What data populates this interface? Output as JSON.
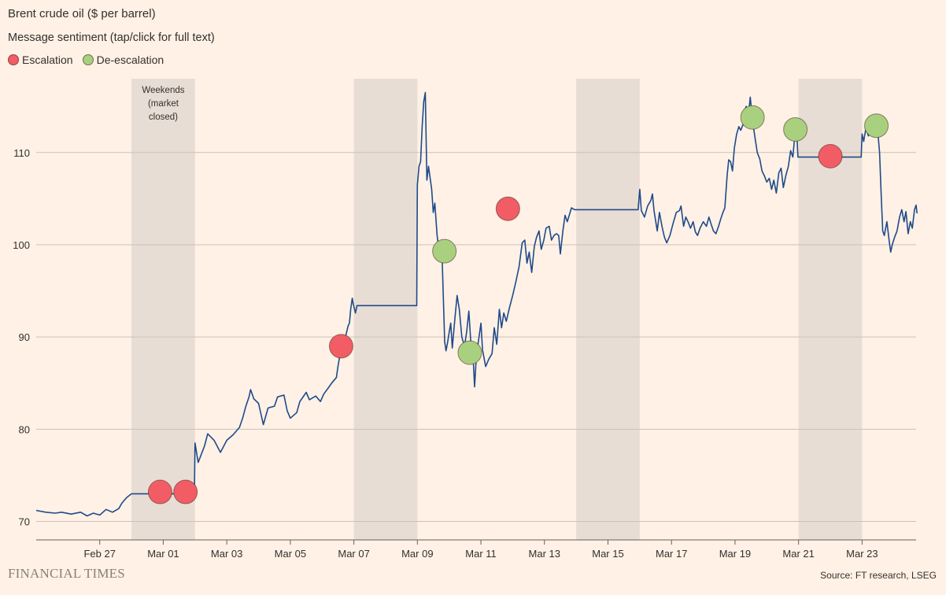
{
  "colors": {
    "background": "#fff1e5",
    "line": "#1f4a8a",
    "gridline": "#ccc1b7",
    "weekend_band": "#e8ddd4",
    "escalation": "#f25d65",
    "de_escalation": "#a9d07e"
  },
  "header": {
    "title": "Brent crude oil ($ per barrel)",
    "subtitle": "Message sentiment (tap/click for full text)"
  },
  "legend": {
    "items": [
      {
        "label": "Escalation",
        "color": "#f25d65"
      },
      {
        "label": "De-escalation",
        "color": "#a9d07e"
      }
    ]
  },
  "footer": {
    "logo": "FINANCIAL TIMES",
    "source": "Source: FT research, LSEG"
  },
  "chart_data": {
    "type": "line",
    "x_unit": "days",
    "xlim": [
      -1.0,
      26.7
    ],
    "ylim": [
      68.0,
      118.0
    ],
    "y_ticks": [
      70,
      80,
      90,
      100,
      110
    ],
    "x_ticks": [
      {
        "x": 1,
        "label": "Feb 27"
      },
      {
        "x": 3,
        "label": "Mar 01"
      },
      {
        "x": 5,
        "label": "Mar 03"
      },
      {
        "x": 7,
        "label": "Mar 05"
      },
      {
        "x": 9,
        "label": "Mar 07"
      },
      {
        "x": 11,
        "label": "Mar 09"
      },
      {
        "x": 13,
        "label": "Mar 11"
      },
      {
        "x": 15,
        "label": "Mar 13"
      },
      {
        "x": 17,
        "label": "Mar 15"
      },
      {
        "x": 19,
        "label": "Mar 17"
      },
      {
        "x": 21,
        "label": "Mar 19"
      },
      {
        "x": 23,
        "label": "Mar 21"
      },
      {
        "x": 25,
        "label": "Mar 23"
      }
    ],
    "weekend_bands": [
      [
        2.0,
        4.0
      ],
      [
        9.0,
        11.0
      ],
      [
        16.0,
        18.0
      ],
      [
        23.0,
        25.0
      ]
    ],
    "band_label": "Weekends\n(market\nclosed)",
    "grid": true,
    "series": [
      {
        "points": [
          [
            -1.0,
            71.2
          ],
          [
            -0.7,
            71.0
          ],
          [
            -0.4,
            70.9
          ],
          [
            -0.2,
            71.0
          ],
          [
            0.1,
            70.8
          ],
          [
            0.4,
            71.0
          ],
          [
            0.6,
            70.6
          ],
          [
            0.8,
            70.9
          ],
          [
            1.0,
            70.7
          ],
          [
            1.2,
            71.3
          ],
          [
            1.4,
            71.0
          ],
          [
            1.6,
            71.4
          ],
          [
            1.7,
            72.0
          ],
          [
            1.85,
            72.6
          ],
          [
            2.0,
            73.0
          ],
          [
            2.15,
            73.0
          ],
          [
            3.5,
            73.0
          ],
          [
            3.98,
            73.0
          ],
          [
            4.0,
            78.5
          ],
          [
            4.1,
            76.4
          ],
          [
            4.3,
            78.2
          ],
          [
            4.4,
            79.5
          ],
          [
            4.6,
            78.8
          ],
          [
            4.8,
            77.5
          ],
          [
            5.0,
            78.8
          ],
          [
            5.2,
            79.4
          ],
          [
            5.4,
            80.2
          ],
          [
            5.5,
            81.2
          ],
          [
            5.6,
            82.5
          ],
          [
            5.7,
            83.5
          ],
          [
            5.75,
            84.3
          ],
          [
            5.85,
            83.3
          ],
          [
            6.0,
            82.8
          ],
          [
            6.15,
            80.5
          ],
          [
            6.3,
            82.3
          ],
          [
            6.5,
            82.5
          ],
          [
            6.6,
            83.5
          ],
          [
            6.8,
            83.7
          ],
          [
            6.9,
            82.0
          ],
          [
            7.0,
            81.2
          ],
          [
            7.2,
            81.8
          ],
          [
            7.3,
            83.0
          ],
          [
            7.5,
            84.0
          ],
          [
            7.6,
            83.2
          ],
          [
            7.8,
            83.6
          ],
          [
            7.95,
            83.0
          ],
          [
            8.05,
            83.8
          ],
          [
            8.2,
            84.5
          ],
          [
            8.3,
            85.0
          ],
          [
            8.45,
            85.6
          ],
          [
            8.5,
            86.8
          ],
          [
            8.55,
            87.8
          ],
          [
            8.62,
            88.8
          ],
          [
            8.68,
            89.3
          ],
          [
            8.75,
            90.2
          ],
          [
            8.82,
            91.2
          ],
          [
            8.86,
            91.5
          ],
          [
            8.9,
            93.0
          ],
          [
            8.95,
            94.2
          ],
          [
            8.98,
            93.6
          ],
          [
            9.05,
            92.6
          ],
          [
            9.1,
            93.4
          ],
          [
            10.98,
            93.4
          ],
          [
            11.0,
            106.5
          ],
          [
            11.05,
            108.5
          ],
          [
            11.1,
            109.0
          ],
          [
            11.15,
            112.8
          ],
          [
            11.2,
            115.5
          ],
          [
            11.25,
            116.5
          ],
          [
            11.3,
            107.0
          ],
          [
            11.35,
            108.5
          ],
          [
            11.45,
            106.0
          ],
          [
            11.5,
            103.5
          ],
          [
            11.55,
            104.5
          ],
          [
            11.62,
            101.0
          ],
          [
            11.7,
            99.0
          ],
          [
            11.78,
            98.5
          ],
          [
            11.82,
            94.0
          ],
          [
            11.86,
            89.5
          ],
          [
            11.9,
            88.5
          ],
          [
            11.95,
            89.4
          ],
          [
            12.0,
            90.5
          ],
          [
            12.05,
            91.5
          ],
          [
            12.1,
            88.8
          ],
          [
            12.18,
            92.0
          ],
          [
            12.25,
            94.5
          ],
          [
            12.32,
            93.0
          ],
          [
            12.4,
            90.0
          ],
          [
            12.48,
            89.0
          ],
          [
            12.55,
            90.5
          ],
          [
            12.62,
            92.8
          ],
          [
            12.7,
            88.5
          ],
          [
            12.75,
            88.1
          ],
          [
            12.8,
            84.6
          ],
          [
            12.85,
            87.5
          ],
          [
            12.9,
            89.0
          ],
          [
            13.0,
            91.5
          ],
          [
            13.05,
            88.6
          ],
          [
            13.15,
            86.8
          ],
          [
            13.25,
            87.6
          ],
          [
            13.35,
            88.2
          ],
          [
            13.42,
            91.0
          ],
          [
            13.5,
            89.2
          ],
          [
            13.58,
            93.0
          ],
          [
            13.65,
            91.0
          ],
          [
            13.72,
            92.6
          ],
          [
            13.8,
            91.7
          ],
          [
            13.9,
            93.2
          ],
          [
            14.0,
            94.5
          ],
          [
            14.1,
            96.0
          ],
          [
            14.2,
            97.6
          ],
          [
            14.3,
            100.2
          ],
          [
            14.38,
            100.5
          ],
          [
            14.45,
            98.0
          ],
          [
            14.52,
            99.2
          ],
          [
            14.6,
            97.0
          ],
          [
            14.68,
            99.8
          ],
          [
            14.75,
            100.8
          ],
          [
            14.83,
            101.5
          ],
          [
            14.9,
            99.5
          ],
          [
            14.98,
            100.5
          ],
          [
            15.05,
            101.8
          ],
          [
            15.15,
            102.0
          ],
          [
            15.22,
            100.5
          ],
          [
            15.3,
            101.0
          ],
          [
            15.38,
            101.2
          ],
          [
            15.45,
            101.0
          ],
          [
            15.5,
            99.0
          ],
          [
            15.58,
            101.5
          ],
          [
            15.65,
            103.2
          ],
          [
            15.72,
            102.5
          ],
          [
            15.78,
            103.2
          ],
          [
            15.85,
            104.0
          ],
          [
            15.95,
            103.8
          ],
          [
            16.02,
            103.8
          ],
          [
            17.95,
            103.8
          ],
          [
            18.0,
            106.0
          ],
          [
            18.05,
            103.7
          ],
          [
            18.15,
            103.0
          ],
          [
            18.25,
            104.2
          ],
          [
            18.35,
            104.8
          ],
          [
            18.4,
            105.5
          ],
          [
            18.45,
            103.7
          ],
          [
            18.55,
            101.5
          ],
          [
            18.62,
            103.5
          ],
          [
            18.7,
            102.0
          ],
          [
            18.78,
            100.8
          ],
          [
            18.85,
            100.2
          ],
          [
            18.95,
            101.0
          ],
          [
            19.05,
            102.3
          ],
          [
            19.15,
            103.5
          ],
          [
            19.25,
            103.7
          ],
          [
            19.3,
            104.2
          ],
          [
            19.38,
            102.0
          ],
          [
            19.45,
            103.0
          ],
          [
            19.52,
            102.5
          ],
          [
            19.6,
            101.8
          ],
          [
            19.68,
            102.5
          ],
          [
            19.75,
            101.4
          ],
          [
            19.82,
            101.0
          ],
          [
            19.9,
            101.8
          ],
          [
            20.0,
            102.5
          ],
          [
            20.1,
            102.0
          ],
          [
            20.18,
            103.0
          ],
          [
            20.25,
            102.2
          ],
          [
            20.32,
            101.5
          ],
          [
            20.4,
            101.2
          ],
          [
            20.48,
            102.0
          ],
          [
            20.55,
            102.8
          ],
          [
            20.62,
            103.5
          ],
          [
            20.68,
            104.0
          ],
          [
            20.75,
            107.5
          ],
          [
            20.8,
            109.2
          ],
          [
            20.86,
            109.0
          ],
          [
            20.92,
            108.0
          ],
          [
            20.98,
            110.5
          ],
          [
            21.05,
            112.0
          ],
          [
            21.12,
            112.8
          ],
          [
            21.18,
            112.4
          ],
          [
            21.25,
            113.0
          ],
          [
            21.3,
            114.5
          ],
          [
            21.35,
            115.0
          ],
          [
            21.42,
            114.0
          ],
          [
            21.48,
            116.0
          ],
          [
            21.55,
            113.5
          ],
          [
            21.62,
            111.8
          ],
          [
            21.7,
            110.0
          ],
          [
            21.78,
            109.3
          ],
          [
            21.85,
            108.0
          ],
          [
            21.92,
            107.5
          ],
          [
            22.0,
            106.8
          ],
          [
            22.08,
            107.2
          ],
          [
            22.15,
            106.0
          ],
          [
            22.22,
            107.0
          ],
          [
            22.3,
            105.6
          ],
          [
            22.38,
            107.8
          ],
          [
            22.45,
            108.3
          ],
          [
            22.52,
            106.2
          ],
          [
            22.6,
            107.5
          ],
          [
            22.68,
            108.5
          ],
          [
            22.75,
            110.2
          ],
          [
            22.82,
            109.5
          ],
          [
            22.9,
            112.5
          ],
          [
            22.95,
            111.8
          ],
          [
            22.98,
            109.5
          ],
          [
            24.97,
            109.5
          ],
          [
            25.0,
            112.0
          ],
          [
            25.05,
            111.2
          ],
          [
            25.12,
            112.6
          ],
          [
            25.2,
            111.8
          ],
          [
            25.28,
            113.0
          ],
          [
            25.35,
            112.5
          ],
          [
            25.42,
            113.2
          ],
          [
            25.5,
            112.0
          ],
          [
            25.55,
            110.0
          ],
          [
            25.6,
            105.5
          ],
          [
            25.65,
            101.5
          ],
          [
            25.7,
            101.0
          ],
          [
            25.78,
            102.5
          ],
          [
            25.85,
            100.5
          ],
          [
            25.9,
            99.2
          ],
          [
            25.95,
            100.0
          ],
          [
            26.02,
            100.8
          ],
          [
            26.1,
            101.5
          ],
          [
            26.18,
            103.0
          ],
          [
            26.25,
            103.8
          ],
          [
            26.32,
            102.5
          ],
          [
            26.38,
            103.6
          ],
          [
            26.45,
            101.2
          ],
          [
            26.52,
            102.5
          ],
          [
            26.58,
            101.8
          ],
          [
            26.65,
            103.8
          ],
          [
            26.7,
            104.3
          ],
          [
            26.73,
            103.4
          ]
        ]
      }
    ],
    "markers": [
      {
        "x": 2.9,
        "y": 73.2,
        "sentiment": "Escalation"
      },
      {
        "x": 3.7,
        "y": 73.2,
        "sentiment": "Escalation"
      },
      {
        "x": 13.85,
        "y": 103.9,
        "sentiment": "Escalation"
      },
      {
        "x": 8.6,
        "y": 89.0,
        "sentiment": "Escalation"
      },
      {
        "x": 11.85,
        "y": 99.3,
        "sentiment": "De-escalation"
      },
      {
        "x": 12.65,
        "y": 88.3,
        "sentiment": "De-escalation"
      },
      {
        "x": 21.55,
        "y": 113.8,
        "sentiment": "De-escalation"
      },
      {
        "x": 22.9,
        "y": 112.5,
        "sentiment": "De-escalation"
      },
      {
        "x": 24.0,
        "y": 109.6,
        "sentiment": "Escalation"
      },
      {
        "x": 25.45,
        "y": 112.9,
        "sentiment": "De-escalation"
      }
    ]
  }
}
